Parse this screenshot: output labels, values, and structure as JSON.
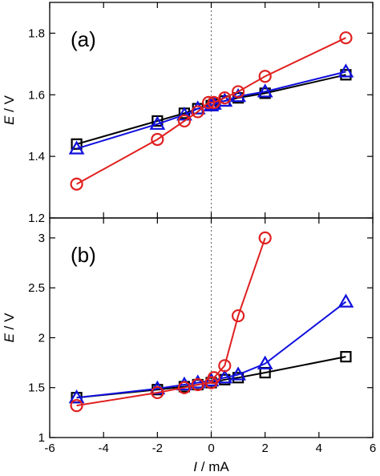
{
  "chart_data": [
    {
      "type": "line",
      "panel_label": "(a)",
      "ylabel_italic": "E",
      "ylabel_unit": " / V",
      "xlim": [
        -6,
        6
      ],
      "ylim": [
        1.2,
        1.9
      ],
      "xticks": [
        -6,
        -4,
        -2,
        0,
        2,
        4,
        6
      ],
      "yticks": [
        1.2,
        1.4,
        1.6,
        1.8
      ],
      "ytick_labels": [
        "1.2",
        "1.4",
        "1.6",
        "1.8"
      ],
      "zero_line": true,
      "grid": false,
      "series": [
        {
          "marker": "square",
          "color": "#000000",
          "x": [
            -5,
            -2,
            -1,
            -0.5,
            0,
            0.1,
            0.5,
            1,
            2,
            5
          ],
          "y": [
            1.44,
            1.515,
            1.54,
            1.555,
            1.565,
            1.57,
            1.58,
            1.59,
            1.605,
            1.665
          ]
        },
        {
          "marker": "triangle",
          "color": "#1010dd",
          "x": [
            -5,
            -2,
            -1,
            -0.5,
            0,
            0.1,
            0.5,
            1,
            2,
            5
          ],
          "y": [
            1.425,
            1.505,
            1.535,
            1.555,
            1.565,
            1.57,
            1.58,
            1.595,
            1.61,
            1.675
          ]
        },
        {
          "marker": "circle",
          "color": "#e02020",
          "x": [
            -5,
            -2,
            -1,
            -0.5,
            -0.1,
            0.1,
            0.5,
            1,
            2,
            5
          ],
          "y": [
            1.31,
            1.455,
            1.515,
            1.545,
            1.575,
            1.575,
            1.59,
            1.61,
            1.66,
            1.785
          ]
        }
      ]
    },
    {
      "type": "line",
      "panel_label": "(b)",
      "ylabel_italic": "E",
      "ylabel_unit": " / V",
      "xlabel_italic": "I",
      "xlabel_unit": " / mA",
      "xlim": [
        -6,
        6
      ],
      "ylim": [
        1,
        3.2
      ],
      "xticks": [
        -6,
        -4,
        -2,
        0,
        2,
        4,
        6
      ],
      "xtick_labels": [
        "-6",
        "-4",
        "-2",
        "0",
        "2",
        "4",
        "6"
      ],
      "yticks": [
        1,
        1.5,
        2,
        2.5,
        3
      ],
      "ytick_labels": [
        "1",
        "1.5",
        "2",
        "2.5",
        "3"
      ],
      "zero_line": true,
      "grid": false,
      "series": [
        {
          "marker": "square",
          "color": "#000000",
          "x": [
            -5,
            -2,
            -1,
            -0.5,
            0,
            0.5,
            1,
            2,
            5
          ],
          "y": [
            1.4,
            1.48,
            1.51,
            1.53,
            1.55,
            1.58,
            1.6,
            1.65,
            1.81
          ]
        },
        {
          "marker": "triangle",
          "color": "#1010dd",
          "x": [
            -5,
            -2,
            -1,
            -0.5,
            0,
            0.5,
            1,
            2,
            5
          ],
          "y": [
            1.4,
            1.49,
            1.53,
            1.55,
            1.57,
            1.6,
            1.63,
            1.74,
            2.36
          ]
        },
        {
          "marker": "circle",
          "color": "#e02020",
          "x": [
            -5,
            -2,
            -1,
            -0.5,
            0,
            0.1,
            0.5,
            1,
            2
          ],
          "y": [
            1.32,
            1.45,
            1.5,
            1.53,
            1.55,
            1.6,
            1.72,
            2.22,
            3.0
          ]
        }
      ]
    }
  ]
}
